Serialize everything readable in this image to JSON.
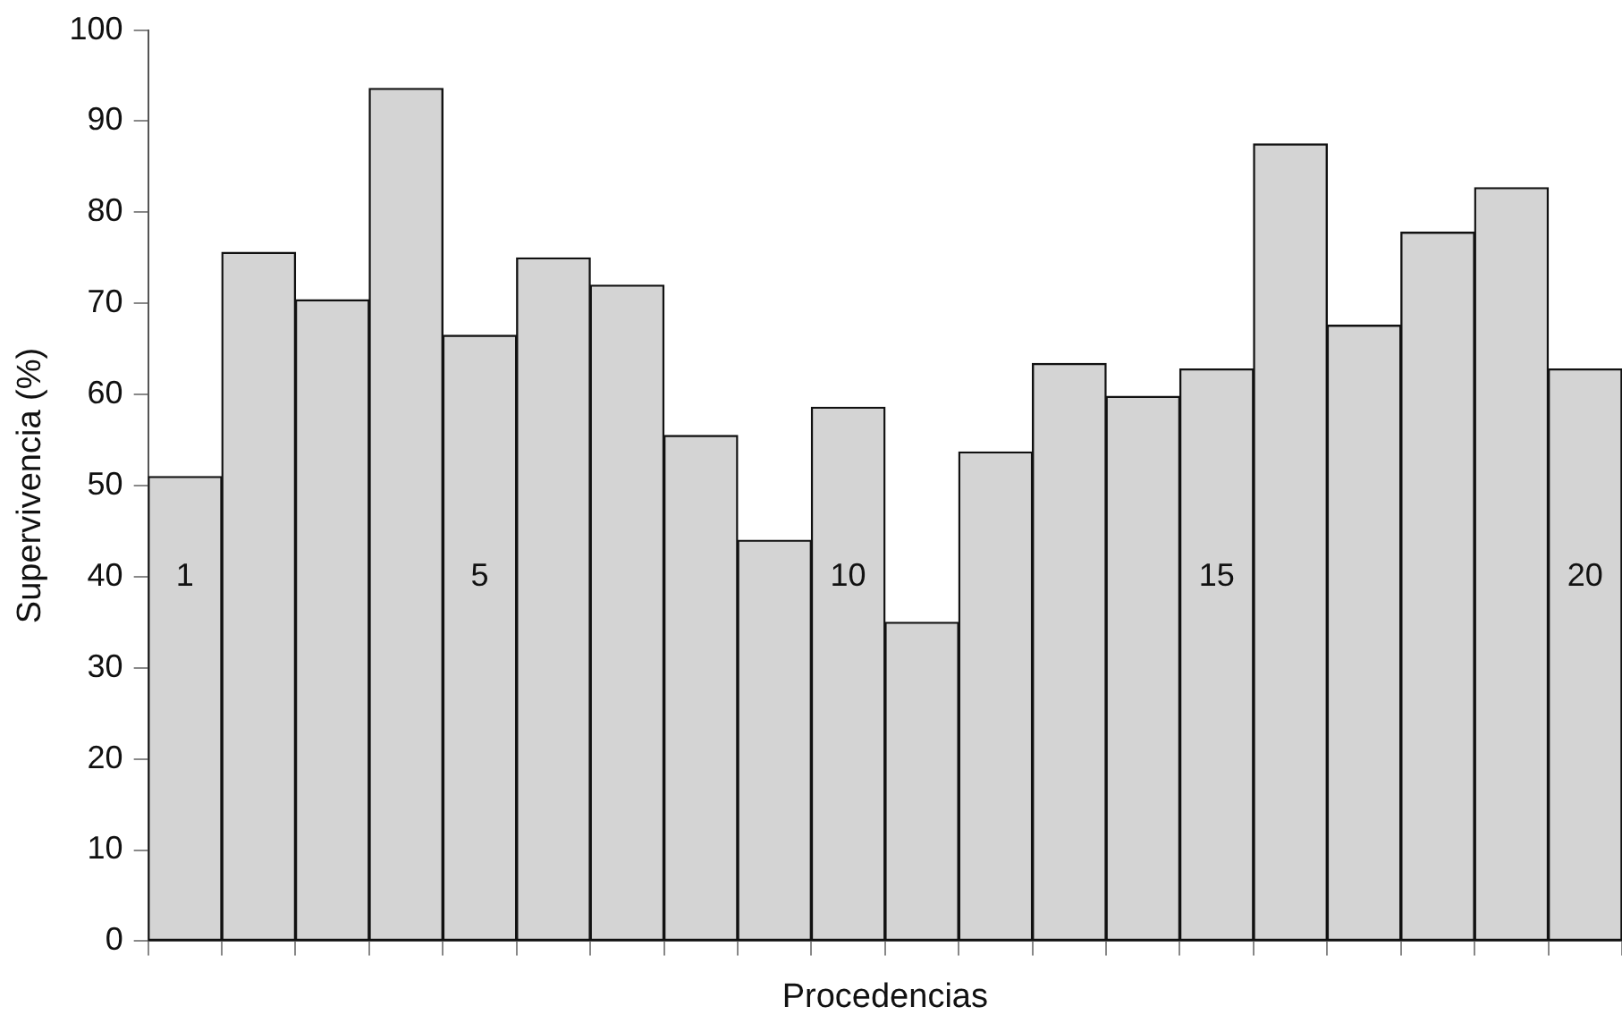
{
  "chart_data": {
    "type": "bar",
    "xlabel": "Procedencias",
    "ylabel": "Supervivencia (%)",
    "categories": [
      "1",
      null,
      null,
      null,
      "5",
      null,
      null,
      null,
      null,
      "10",
      null,
      null,
      null,
      null,
      "15",
      null,
      null,
      null,
      null,
      "20"
    ],
    "values": [
      51,
      75.6,
      70.4,
      93.6,
      66.5,
      75,
      72,
      55.5,
      44,
      58.6,
      35,
      53.7,
      63.4,
      59.8,
      62.8,
      87.5,
      67.6,
      77.8,
      82.7,
      62.8
    ],
    "color": "#d4d4d4",
    "ylim": [
      0,
      100
    ],
    "yticks": [
      0,
      10,
      20,
      30,
      40,
      50,
      60,
      70,
      80,
      90,
      100
    ],
    "grid": false,
    "legend": false
  }
}
